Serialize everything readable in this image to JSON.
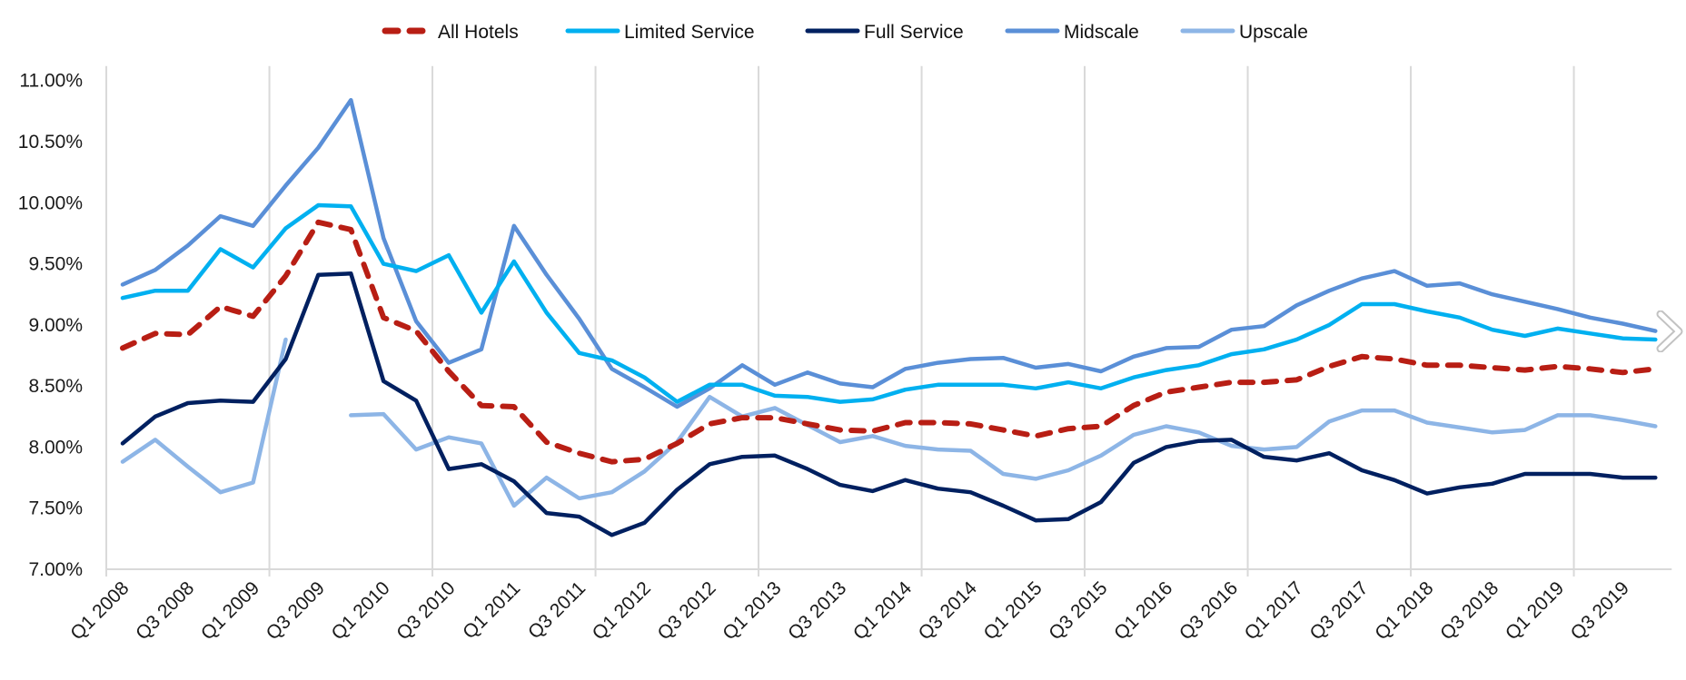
{
  "chart_data": {
    "type": "line",
    "title": "",
    "xlabel": "",
    "ylabel": "",
    "ylim": [
      7.0,
      11.0
    ],
    "y_ticks": [
      "7.00%",
      "7.50%",
      "8.00%",
      "8.50%",
      "9.00%",
      "9.50%",
      "10.00%",
      "10.50%",
      "11.00%"
    ],
    "y_tick_values": [
      7.0,
      7.5,
      8.0,
      8.5,
      9.0,
      9.5,
      10.0,
      10.5,
      11.0
    ],
    "grid": "vertical lines only",
    "legend_position": "top",
    "categories": [
      "Q1 2008",
      "Q2 2008",
      "Q3 2008",
      "Q4 2008",
      "Q1 2009",
      "Q2 2009",
      "Q3 2009",
      "Q4 2009",
      "Q1 2010",
      "Q2 2010",
      "Q3 2010",
      "Q4 2010",
      "Q1 2011",
      "Q2 2011",
      "Q3 2011",
      "Q4 2011",
      "Q1 2012",
      "Q2 2012",
      "Q3 2012",
      "Q4 2012",
      "Q1 2013",
      "Q2 2013",
      "Q3 2013",
      "Q4 2013",
      "Q1 2014",
      "Q2 2014",
      "Q3 2014",
      "Q4 2014",
      "Q1 2015",
      "Q2 2015",
      "Q3 2015",
      "Q4 2015",
      "Q1 2016",
      "Q2 2016",
      "Q3 2016",
      "Q4 2016",
      "Q1 2017",
      "Q2 2017",
      "Q3 2017",
      "Q4 2017",
      "Q1 2018",
      "Q2 2018",
      "Q3 2018",
      "Q4 2018",
      "Q1 2019",
      "Q2 2019",
      "Q3 2019",
      "Q4 2019"
    ],
    "x_tick_labels": [
      "Q1 2008",
      "Q3 2008",
      "Q1 2009",
      "Q3 2009",
      "Q1 2010",
      "Q3 2010",
      "Q1 2011",
      "Q3 2011",
      "Q1 2012",
      "Q3 2012",
      "Q1 2013",
      "Q3 2013",
      "Q1 2014",
      "Q3 2014",
      "Q1 2015",
      "Q3 2015",
      "Q1 2016",
      "Q3 2016",
      "Q1 2017",
      "Q3 2017",
      "Q1 2018",
      "Q3 2018",
      "Q1 2019",
      "Q3 2019"
    ],
    "series": [
      {
        "name": "All Hotels",
        "color": "#B81E14",
        "dashed": true,
        "values": [
          8.81,
          8.93,
          8.92,
          9.15,
          9.07,
          9.4,
          9.84,
          9.78,
          9.06,
          8.95,
          8.62,
          8.34,
          8.33,
          8.04,
          7.95,
          7.88,
          7.9,
          8.03,
          8.19,
          8.24,
          8.24,
          8.19,
          8.14,
          8.13,
          8.2,
          8.2,
          8.19,
          8.14,
          8.09,
          8.15,
          8.17,
          8.34,
          8.45,
          8.49,
          8.53,
          8.53,
          8.55,
          8.66,
          8.74,
          8.72,
          8.67,
          8.67,
          8.65,
          8.63,
          8.66,
          8.64,
          8.61,
          8.64
        ]
      },
      {
        "name": "Limited Service",
        "color": "#00B0F0",
        "dashed": false,
        "values": [
          9.22,
          9.28,
          9.28,
          9.62,
          9.47,
          9.79,
          9.98,
          9.97,
          9.5,
          9.44,
          9.57,
          9.1,
          9.52,
          9.1,
          8.77,
          8.71,
          8.57,
          8.37,
          8.51,
          8.51,
          8.42,
          8.41,
          8.37,
          8.39,
          8.47,
          8.51,
          8.51,
          8.51,
          8.48,
          8.53,
          8.48,
          8.57,
          8.63,
          8.67,
          8.76,
          8.8,
          8.88,
          9.0,
          9.17,
          9.17,
          9.11,
          9.06,
          8.96,
          8.91,
          8.97,
          8.93,
          8.89,
          8.88
        ]
      },
      {
        "name": "Full Service",
        "color": "#002060",
        "dashed": false,
        "values": [
          8.03,
          8.25,
          8.36,
          8.38,
          8.37,
          8.72,
          9.41,
          9.42,
          8.54,
          8.38,
          7.82,
          7.86,
          7.72,
          7.46,
          7.43,
          7.28,
          7.38,
          7.65,
          7.86,
          7.92,
          7.93,
          7.82,
          7.69,
          7.64,
          7.73,
          7.66,
          7.63,
          7.52,
          7.4,
          7.41,
          7.55,
          7.87,
          8.0,
          8.05,
          8.06,
          7.92,
          7.89,
          7.95,
          7.81,
          7.73,
          7.62,
          7.67,
          7.7,
          7.78,
          7.78,
          7.78,
          7.75,
          7.75
        ]
      },
      {
        "name": "Midscale",
        "color": "#5A8FD7",
        "dashed": false,
        "values": [
          9.33,
          9.45,
          9.65,
          9.89,
          9.81,
          10.14,
          10.45,
          10.84,
          9.71,
          9.03,
          8.69,
          8.8,
          9.81,
          9.41,
          9.05,
          8.64,
          8.49,
          8.33,
          8.48,
          8.67,
          8.51,
          8.61,
          8.52,
          8.49,
          8.64,
          8.69,
          8.72,
          8.73,
          8.65,
          8.68,
          8.62,
          8.74,
          8.81,
          8.82,
          8.96,
          8.99,
          9.16,
          9.28,
          9.38,
          9.44,
          9.32,
          9.34,
          9.25,
          9.19,
          9.13,
          9.06,
          9.01,
          8.95
        ]
      },
      {
        "name": "Upscale",
        "color": "#8DB5E6",
        "dashed": false,
        "values": [
          7.88,
          8.06,
          7.84,
          7.63,
          7.71,
          8.88,
          null,
          8.26,
          8.27,
          7.98,
          8.08,
          8.03,
          7.52,
          7.75,
          7.58,
          7.63,
          7.8,
          8.04,
          8.41,
          8.25,
          8.32,
          8.18,
          8.04,
          8.09,
          8.01,
          7.98,
          7.97,
          7.78,
          7.74,
          7.81,
          7.93,
          8.1,
          8.17,
          8.12,
          8.01,
          7.98,
          8.0,
          8.21,
          8.3,
          8.3,
          8.2,
          8.16,
          8.12,
          8.14,
          8.26,
          8.26,
          8.22,
          8.17
        ]
      }
    ],
    "colors": {
      "gridline": "#D9D9D9",
      "axis": "#D9D9D9"
    }
  },
  "controls": {
    "next_icon": "chevron-right-icon"
  }
}
